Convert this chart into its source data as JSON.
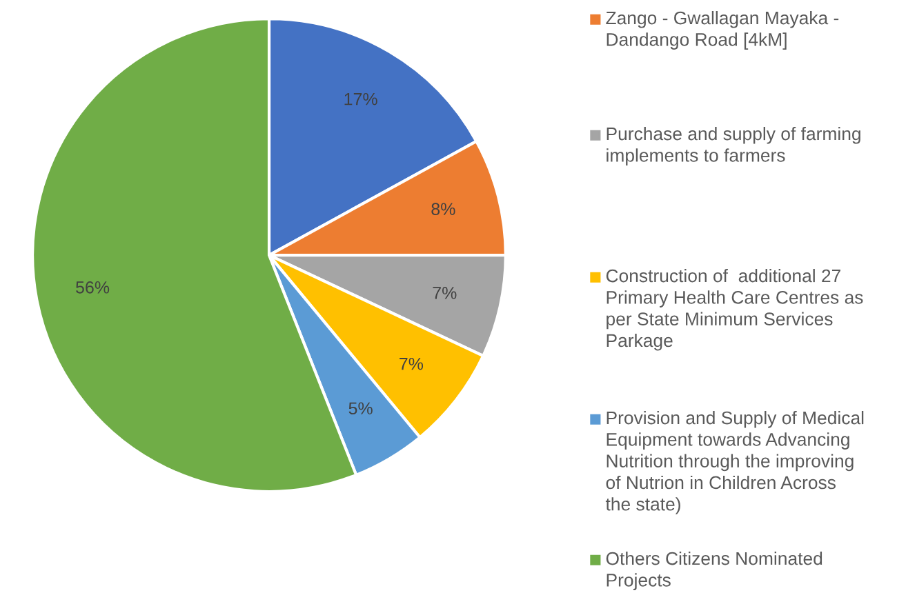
{
  "chart_data": {
    "type": "pie",
    "categories": [
      null,
      "Zango - Gwallagan Mayaka -\nDandango Road [4kM]",
      "Purchase and supply of farming\nimplements to farmers",
      "Construction of  additional 27\nPrimary Health Care Centres as\nper State Minimum Services\nParkage",
      "Provision and Supply of Medical\nEquipment towards Advancing\nNutrition through the improving\nof Nutrion in Children Across\nthe state)",
      "Others Citizens Nominated\nProjects"
    ],
    "values": [
      17,
      8,
      7,
      7,
      5,
      56
    ],
    "value_labels": [
      "17%",
      "8%",
      "7%",
      "7%",
      "5%",
      "56%"
    ],
    "colors": [
      "#4472c4",
      "#ed7d31",
      "#a5a5a5",
      "#ffc000",
      "#5b9bd5",
      "#70ad47"
    ],
    "legend": "right"
  }
}
